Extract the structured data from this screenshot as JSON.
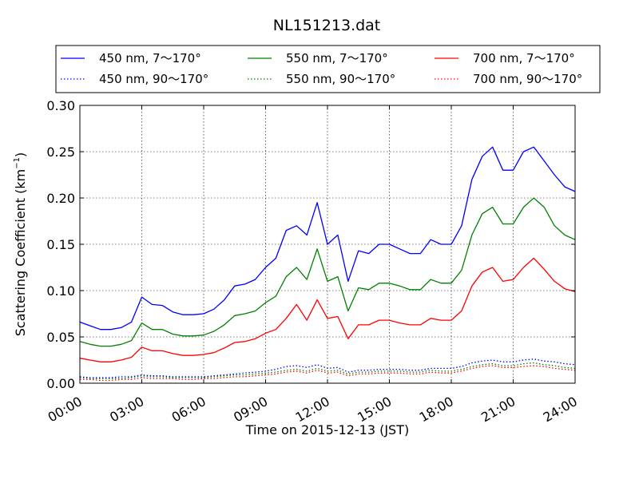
{
  "chart_data": {
    "type": "line",
    "title": "NL151213.dat",
    "xlabel": "Time on 2015-12-13 (JST)",
    "ylabel": "Scattering Coefficient (km",
    "ylabel_sup": "−1",
    "ylabel_close": ")",
    "xlim": [
      0,
      24
    ],
    "ylim": [
      0,
      0.3
    ],
    "x_ticks": [
      0,
      3,
      6,
      9,
      12,
      15,
      18,
      21,
      24
    ],
    "x_tick_labels": [
      "00:00",
      "03:00",
      "06:00",
      "09:00",
      "12:00",
      "15:00",
      "18:00",
      "21:00",
      "24:00"
    ],
    "y_ticks": [
      0,
      0.05,
      0.1,
      0.15,
      0.2,
      0.25,
      0.3
    ],
    "y_tick_labels": [
      "0.00",
      "0.05",
      "0.10",
      "0.15",
      "0.20",
      "0.25",
      "0.30"
    ],
    "grid": true,
    "legend_position": "top, outside plot, 3 columns",
    "x_hours": [
      0,
      0.5,
      1,
      1.5,
      2,
      2.5,
      3,
      3.5,
      4,
      4.5,
      5,
      5.5,
      6,
      6.5,
      7,
      7.5,
      8,
      8.5,
      9,
      9.5,
      10,
      10.5,
      11,
      11.5,
      12,
      12.5,
      13,
      13.5,
      14,
      14.5,
      15,
      15.5,
      16,
      16.5,
      17,
      17.5,
      18,
      18.5,
      19,
      19.5,
      20,
      20.5,
      21,
      21.5,
      22,
      22.5,
      23,
      23.5,
      24
    ],
    "series": [
      {
        "name": "450 nm, 7～170°",
        "color": "#0000ff",
        "style": "solid",
        "values": [
          0.066,
          0.062,
          0.058,
          0.058,
          0.06,
          0.066,
          0.093,
          0.085,
          0.084,
          0.077,
          0.074,
          0.074,
          0.075,
          0.08,
          0.09,
          0.105,
          0.107,
          0.112,
          0.125,
          0.135,
          0.165,
          0.17,
          0.16,
          0.195,
          0.15,
          0.16,
          0.11,
          0.143,
          0.14,
          0.15,
          0.15,
          0.145,
          0.14,
          0.14,
          0.155,
          0.15,
          0.15,
          0.17,
          0.22,
          0.245,
          0.255,
          0.23,
          0.23,
          0.25,
          0.255,
          0.24,
          0.225,
          0.212,
          0.207
        ]
      },
      {
        "name": "450 nm, 90～170°",
        "color": "#0000ff",
        "style": "dotted",
        "values": [
          0.007,
          0.006,
          0.006,
          0.006,
          0.007,
          0.007,
          0.009,
          0.008,
          0.008,
          0.007,
          0.007,
          0.007,
          0.007,
          0.008,
          0.009,
          0.01,
          0.011,
          0.012,
          0.013,
          0.015,
          0.018,
          0.019,
          0.017,
          0.02,
          0.016,
          0.017,
          0.012,
          0.014,
          0.014,
          0.015,
          0.015,
          0.015,
          0.014,
          0.014,
          0.016,
          0.016,
          0.016,
          0.018,
          0.022,
          0.024,
          0.025,
          0.023,
          0.023,
          0.025,
          0.026,
          0.024,
          0.023,
          0.021,
          0.02
        ]
      },
      {
        "name": "550 nm, 7～170°",
        "color": "#008000",
        "style": "solid",
        "values": [
          0.045,
          0.042,
          0.04,
          0.04,
          0.042,
          0.046,
          0.065,
          0.058,
          0.058,
          0.053,
          0.051,
          0.051,
          0.052,
          0.056,
          0.063,
          0.073,
          0.075,
          0.078,
          0.087,
          0.094,
          0.115,
          0.125,
          0.112,
          0.145,
          0.11,
          0.115,
          0.078,
          0.103,
          0.101,
          0.108,
          0.108,
          0.105,
          0.101,
          0.101,
          0.112,
          0.108,
          0.108,
          0.122,
          0.16,
          0.183,
          0.19,
          0.172,
          0.172,
          0.19,
          0.2,
          0.19,
          0.17,
          0.16,
          0.155
        ]
      },
      {
        "name": "550 nm, 90～170°",
        "color": "#008000",
        "style": "dotted",
        "values": [
          0.006,
          0.005,
          0.005,
          0.005,
          0.005,
          0.006,
          0.008,
          0.007,
          0.007,
          0.006,
          0.006,
          0.006,
          0.006,
          0.007,
          0.008,
          0.009,
          0.009,
          0.01,
          0.011,
          0.012,
          0.014,
          0.015,
          0.013,
          0.016,
          0.013,
          0.014,
          0.01,
          0.012,
          0.012,
          0.013,
          0.013,
          0.013,
          0.012,
          0.012,
          0.014,
          0.013,
          0.013,
          0.015,
          0.018,
          0.02,
          0.021,
          0.019,
          0.019,
          0.021,
          0.022,
          0.02,
          0.019,
          0.017,
          0.016
        ]
      },
      {
        "name": "700 nm, 7～170°",
        "color": "#ff0000",
        "style": "solid",
        "values": [
          0.027,
          0.025,
          0.023,
          0.023,
          0.025,
          0.028,
          0.039,
          0.035,
          0.035,
          0.032,
          0.03,
          0.03,
          0.031,
          0.033,
          0.038,
          0.044,
          0.045,
          0.048,
          0.054,
          0.058,
          0.07,
          0.085,
          0.068,
          0.09,
          0.07,
          0.072,
          0.048,
          0.063,
          0.063,
          0.068,
          0.068,
          0.065,
          0.063,
          0.063,
          0.07,
          0.068,
          0.068,
          0.078,
          0.105,
          0.12,
          0.125,
          0.11,
          0.112,
          0.125,
          0.135,
          0.123,
          0.11,
          0.102,
          0.099
        ]
      },
      {
        "name": "700 nm, 90～170°",
        "color": "#ff0000",
        "style": "dotted",
        "values": [
          0.004,
          0.004,
          0.003,
          0.003,
          0.004,
          0.004,
          0.006,
          0.005,
          0.005,
          0.005,
          0.004,
          0.004,
          0.005,
          0.005,
          0.006,
          0.007,
          0.007,
          0.008,
          0.009,
          0.01,
          0.012,
          0.013,
          0.011,
          0.014,
          0.011,
          0.012,
          0.008,
          0.01,
          0.01,
          0.011,
          0.011,
          0.011,
          0.01,
          0.01,
          0.012,
          0.011,
          0.011,
          0.013,
          0.016,
          0.018,
          0.019,
          0.017,
          0.017,
          0.018,
          0.019,
          0.018,
          0.016,
          0.015,
          0.014
        ]
      }
    ]
  }
}
